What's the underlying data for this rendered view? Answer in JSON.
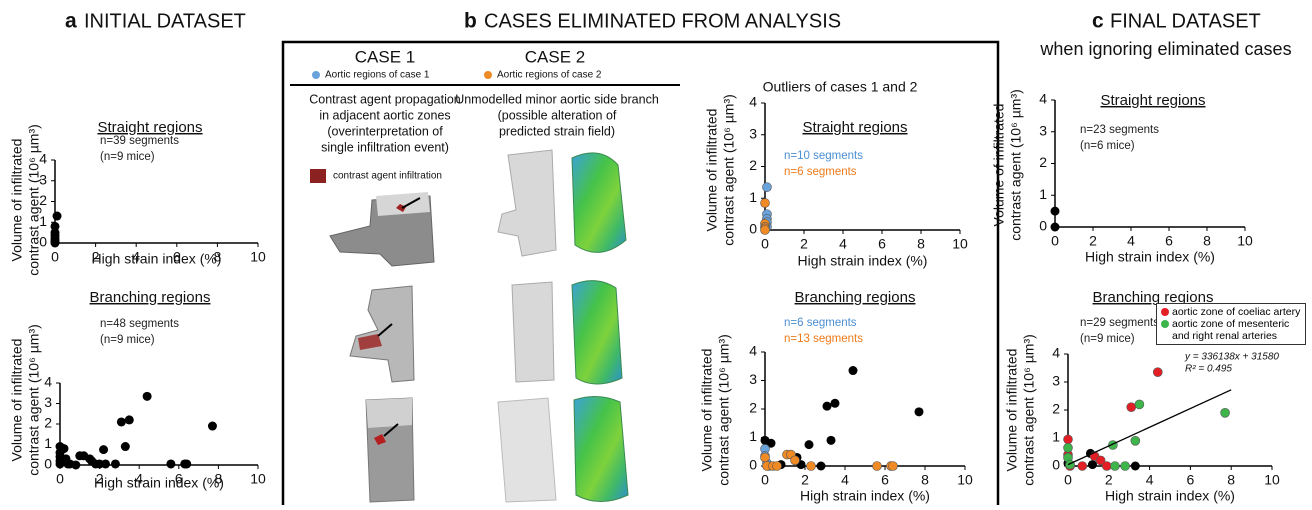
{
  "panel_a": {
    "label": "a",
    "title": "INITIAL DATASET"
  },
  "panel_b": {
    "label": "b",
    "title": "CASES ELIMINATED FROM ANALYSIS",
    "case1": "CASE 1",
    "case1_legend": "Aortic regions of case 1",
    "case2": "CASE 2",
    "case2_legend": "Aortic regions of case 2",
    "case1_desc": [
      "Contrast agent propagation",
      "in adjacent aortic zones",
      "(overinterpretation of",
      "single infiltration event)"
    ],
    "case2_desc": [
      "Unmodelled minor aortic side branch",
      "(possible alteration of",
      "predicted strain field)"
    ],
    "infiltration_legend": "contrast agent infiltration",
    "outliers_title": "Outliers of cases 1 and 2"
  },
  "panel_c": {
    "label": "c",
    "title": "FINAL DATASET",
    "subtitle": "when ignoring eliminated cases"
  },
  "chart_data": [
    {
      "type": "scatter",
      "title": "Straight regions",
      "annotations": [
        {
          "text": "n=39 segments",
          "color": "#222222"
        },
        {
          "text": "(n=9 mice)",
          "color": "#222222"
        }
      ],
      "ylabel": [
        "Volume of infiltrated",
        "contrast agent (10⁶ µm³)"
      ],
      "xlabel": "High strain index (%)",
      "xlim": [
        0,
        10
      ],
      "ylim": [
        0,
        4
      ],
      "xticks": [
        0,
        2,
        4,
        6,
        8,
        10
      ],
      "yticks": [
        0,
        1,
        2,
        3,
        4
      ],
      "series": [
        {
          "color": "#000000",
          "x": [
            0.1,
            0,
            0,
            0,
            0,
            0,
            0,
            0
          ],
          "values": [
            1.3,
            0.8,
            0.5,
            0.35,
            0.2,
            0.1,
            0.05,
            0
          ]
        }
      ]
    },
    {
      "type": "scatter",
      "title": "Branching regions",
      "annotations": [
        {
          "text": "n=48 segments",
          "color": "#222222"
        },
        {
          "text": "(n=9 mice)",
          "color": "#222222"
        }
      ],
      "ylabel": [
        "Volume of infiltrated",
        "contrast agent (10⁶ µm³)"
      ],
      "xlabel": "High strain index (%)",
      "xlim": [
        0,
        10
      ],
      "ylim": [
        0,
        4
      ],
      "xticks": [
        0,
        2,
        4,
        6,
        8,
        10
      ],
      "yticks": [
        0,
        1,
        2,
        3,
        4
      ],
      "series": [
        {
          "color": "#000000",
          "x": [
            0,
            0,
            0,
            0,
            0,
            0.2,
            0.3,
            0.4,
            0.5,
            0.8,
            1,
            1.2,
            1.5,
            1.6,
            1.8,
            2,
            2.2,
            2.3,
            2.8,
            3.1,
            3.3,
            3.5,
            4.4,
            5.6,
            6.3,
            6.4,
            7.7
          ],
          "values": [
            0.9,
            0.6,
            0.4,
            0.2,
            0.05,
            0.8,
            0.3,
            0.05,
            0.05,
            0,
            0.45,
            0.45,
            0.3,
            0.2,
            0.05,
            0.05,
            0.75,
            0.05,
            0.05,
            2.1,
            0.9,
            2.2,
            3.35,
            0.05,
            0.05,
            0.05,
            1.9
          ]
        }
      ]
    },
    {
      "type": "scatter",
      "title": "Straight regions",
      "annotations": [
        {
          "text": "n=10 segments",
          "color": "#4a8fd4"
        },
        {
          "text": "n=6 segments",
          "color": "#ee7a1a"
        }
      ],
      "ylabel": [
        "Volume of infiltrated",
        "contrast agent (10⁶ µm³)"
      ],
      "xlabel": "High strain index (%)",
      "xlim": [
        0,
        10
      ],
      "ylim": [
        0,
        4
      ],
      "xticks": [
        0,
        2,
        4,
        6,
        8,
        10
      ],
      "yticks": [
        0,
        1,
        2,
        3,
        4
      ],
      "series": [
        {
          "color": "#6aa2db",
          "x": [
            0.1,
            0.1,
            0.1,
            0.1,
            0.1
          ],
          "values": [
            1.35,
            0.5,
            0.35,
            0.25,
            0.1
          ]
        },
        {
          "color": "#f08a24",
          "x": [
            0,
            0,
            0,
            0,
            0
          ],
          "values": [
            0.85,
            0.2,
            0.1,
            0.05,
            0
          ]
        }
      ]
    },
    {
      "type": "scatter",
      "title": "Branching regions",
      "annotations": [
        {
          "text": "n=6 segments",
          "color": "#4a8fd4"
        },
        {
          "text": "n=13 segments",
          "color": "#ee7a1a"
        }
      ],
      "ylabel": [
        "Volume of infiltrated",
        "contrast agent (10⁶ µm³)"
      ],
      "xlabel": "High strain index (%)",
      "xlim": [
        0,
        10
      ],
      "ylim": [
        0,
        4
      ],
      "xticks": [
        0,
        2,
        4,
        6,
        8,
        10
      ],
      "yticks": [
        0,
        1,
        2,
        3,
        4
      ],
      "series": [
        {
          "color": "#000000",
          "x": [
            0,
            0.3,
            0.8,
            1.6,
            1.8,
            2.2,
            2.8,
            3.1,
            3.3,
            3.5,
            4.4,
            7.7
          ],
          "values": [
            0.9,
            0.8,
            0.05,
            0.3,
            0.05,
            0.75,
            0,
            2.1,
            0.9,
            2.2,
            3.35,
            1.9
          ]
        },
        {
          "color": "#6aa2db",
          "x": [
            0,
            0,
            0.1,
            0.2
          ],
          "values": [
            0.6,
            0.35,
            0.1,
            0
          ]
        },
        {
          "color": "#f08a24",
          "x": [
            0,
            0.1,
            0.4,
            0.6,
            1.1,
            1.3,
            1.5,
            2.3,
            5.6,
            6.3,
            6.4
          ],
          "values": [
            0.3,
            0,
            0,
            0,
            0.4,
            0.4,
            0.2,
            0,
            0,
            0,
            0
          ]
        }
      ]
    },
    {
      "type": "scatter",
      "title": "Straight regions",
      "annotations": [
        {
          "text": "n=23 segments",
          "color": "#222222"
        },
        {
          "text": "(n=6 mice)",
          "color": "#222222"
        }
      ],
      "ylabel": [
        "Volume of infiltrated",
        "contrast agent (10⁶ µm³)"
      ],
      "xlabel": "High strain index (%)",
      "xlim": [
        0,
        10
      ],
      "ylim": [
        0,
        4
      ],
      "xticks": [
        0,
        2,
        4,
        6,
        8,
        10
      ],
      "yticks": [
        0,
        1,
        2,
        3,
        4
      ],
      "series": [
        {
          "color": "#000000",
          "x": [
            0,
            0
          ],
          "values": [
            0.5,
            0
          ]
        }
      ]
    },
    {
      "type": "scatter",
      "title": "Branching regions",
      "annotations": [
        {
          "text": "n=29 segments",
          "color": "#222222"
        },
        {
          "text": "(n=9 mice)",
          "color": "#222222"
        }
      ],
      "ylabel": [
        "Volume of infiltrated",
        "contrast agent (10⁶ µm³)"
      ],
      "xlabel": "High strain index (%)",
      "xlim": [
        0,
        10
      ],
      "ylim": [
        0,
        4
      ],
      "xticks": [
        0,
        2,
        4,
        6,
        8,
        10
      ],
      "yticks": [
        0,
        1,
        2,
        3,
        4
      ],
      "fit_label": [
        "y = 336138x + 31580",
        "R² = 0.495"
      ],
      "series": [
        {
          "color": "#000000",
          "x": [
            0,
            1.1,
            1.2,
            3.3
          ],
          "values": [
            0.1,
            0.45,
            0.05,
            0
          ]
        },
        {
          "name": "aortic zone of coeliac artery",
          "color": "#e31e24",
          "x": [
            0,
            0,
            0.1,
            0.7,
            1.3,
            1.6,
            1.9,
            3.1,
            4.4
          ],
          "values": [
            0.95,
            0.4,
            0,
            0,
            0.35,
            0.2,
            0,
            2.1,
            3.35
          ]
        },
        {
          "name": "aortic zone of mesenteric and right renal arteries",
          "color": "#3db54a",
          "x": [
            0,
            0,
            0.1,
            2.2,
            2.3,
            2.8,
            3.3,
            3.5,
            7.7
          ],
          "values": [
            0.65,
            0.3,
            0.05,
            0.75,
            0,
            0,
            0.9,
            2.2,
            1.9
          ]
        },
        {
          "mode": "line",
          "color": "#000000",
          "x": [
            0,
            8
          ],
          "values": [
            0.05,
            2.72
          ]
        }
      ]
    }
  ]
}
